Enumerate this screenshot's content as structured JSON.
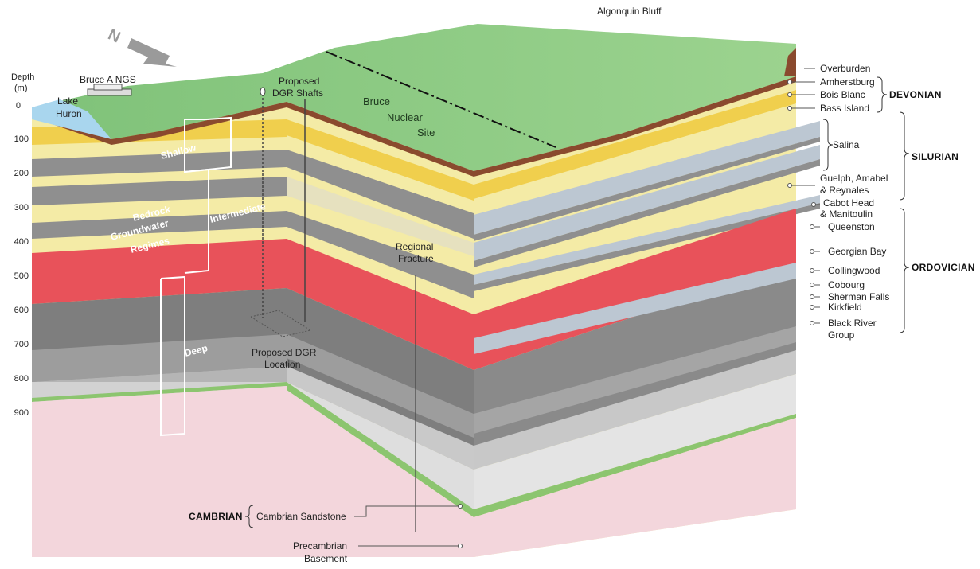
{
  "depth_axis": {
    "title_line1": "Depth",
    "title_line2": "(m)",
    "ticks": [
      "0",
      "100",
      "200",
      "300",
      "400",
      "500",
      "600",
      "700",
      "800",
      "900"
    ]
  },
  "site_labels": {
    "algonquin_bluff": "Algonquin Bluff",
    "bruce_a_ngs": "Bruce A NGS",
    "lake_line1": "Lake",
    "lake_line2": "Huron",
    "shafts_line1": "Proposed",
    "shafts_line2": "DGR Shafts",
    "site_line1": "Bruce",
    "site_line2": "Nuclear",
    "site_line3": "Site",
    "fracture_line1": "Regional",
    "fracture_line2": "Fracture",
    "dgr_loc_line1": "Proposed DGR",
    "dgr_loc_line2": "Location"
  },
  "regimes": {
    "shallow": "Shallow",
    "intermediate": "Intermediate",
    "deep": "Deep",
    "bedrock_line1": "Bedrock",
    "bedrock_line2": "Groundwater",
    "bedrock_line3": "Regimes"
  },
  "formations": {
    "overburden": "Overburden",
    "amherstburg": "Amherstburg",
    "bois_blanc": "Bois Blanc",
    "bass_island": "Bass Island",
    "salina": "Salina",
    "guelph_line1": "Guelph, Amabel",
    "guelph_line2": "& Reynales",
    "cabot_line1": "Cabot Head",
    "cabot_line2": "& Manitoulin",
    "queenston": "Queenston",
    "georgian_bay": "Georgian Bay",
    "collingwood": "Collingwood",
    "cobourg": "Cobourg",
    "sherman_falls": "Sherman Falls",
    "kirkfield": "Kirkfield",
    "black_river_line1": "Black River",
    "black_river_line2": "Group",
    "cambrian_sandstone": "Cambrian Sandstone",
    "precambrian_line1": "Precambrian",
    "precambrian_line2": "Basement"
  },
  "eras": {
    "devonian": "DEVONIAN",
    "silurian": "SILURIAN",
    "ordovician": "ORDOVICIAN",
    "cambrian": "CAMBRIAN"
  },
  "north_arrow": {
    "letter": "N"
  },
  "colors": {
    "ground": "#86c77f",
    "overburden": "#8a4a2e",
    "tan": "#f4eba6",
    "yellow": "#f0cf4d",
    "grey": "#8f8f8f",
    "light_grey": "#bcc7d2",
    "red": "#e8525a",
    "pink": "#f3d6dc",
    "green_band": "#8cc56f",
    "lake": "#a9d6ee"
  }
}
